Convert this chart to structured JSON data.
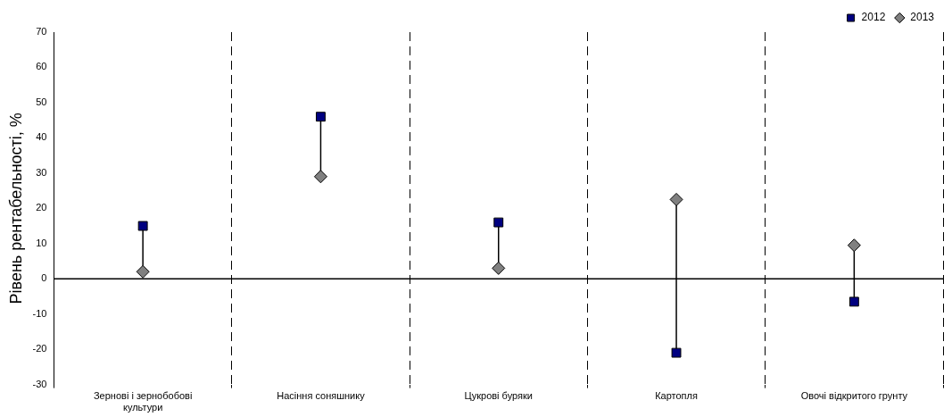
{
  "chart_data": {
    "type": "scatter",
    "ylabel": "Рівень рентабельності, %",
    "categories": [
      "Зернові і зернобобові культури",
      "Насіння соняшнику",
      "Цукрові буряки",
      "Картопля",
      "Овочі відкритого грунту"
    ],
    "series": [
      {
        "name": "2012",
        "color": "#000080",
        "marker": "square",
        "values": [
          15,
          46,
          16,
          -21,
          -6.5
        ]
      },
      {
        "name": "2013",
        "color": "#808080",
        "marker": "diamond",
        "values": [
          2,
          29,
          3,
          22.5,
          9.5
        ]
      }
    ],
    "ylim": [
      -30,
      70
    ],
    "yticks": [
      -30,
      -20,
      -10,
      0,
      10,
      20,
      30,
      40,
      50,
      60,
      70
    ],
    "grid": "x",
    "legend": "top right",
    "ref_lines": [
      {
        "axis": "y",
        "value": 0,
        "color": "#000000"
      }
    ]
  }
}
